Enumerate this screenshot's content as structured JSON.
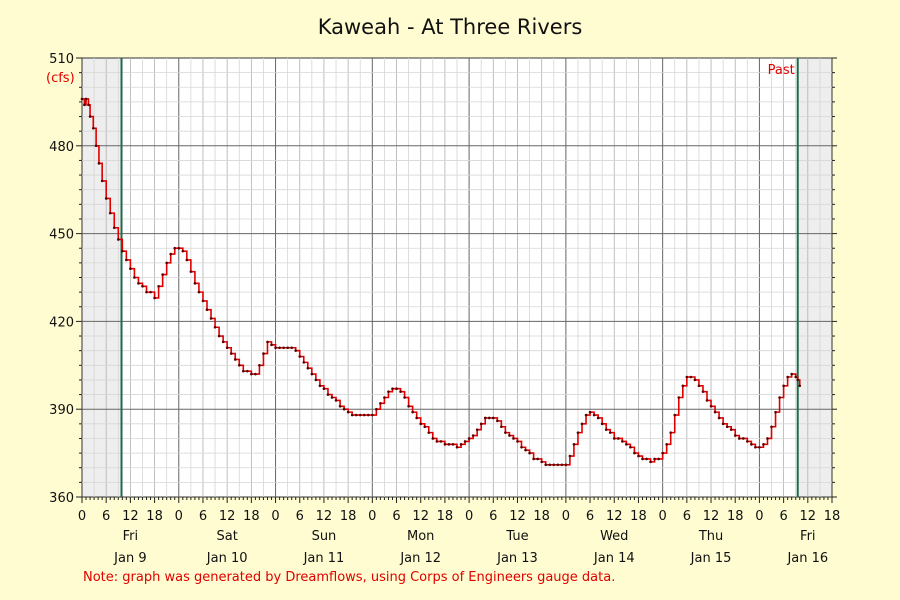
{
  "chart_data": {
    "type": "line",
    "title": "Kaweah - At Three Rivers",
    "unit_label": "(cfs)",
    "ylim": [
      360,
      510
    ],
    "y_ticks": [
      360,
      390,
      420,
      450,
      480,
      510
    ],
    "x_hours_range": [
      0,
      186
    ],
    "hour_tick_labels": [
      "0",
      "6",
      "12",
      "18",
      "0",
      "6",
      "12",
      "18",
      "0",
      "6",
      "12",
      "18",
      "0",
      "6",
      "12",
      "18",
      "0",
      "6",
      "12",
      "18",
      "0",
      "6",
      "12",
      "18",
      "0",
      "6",
      "12",
      "18",
      "0",
      "6",
      "12",
      "18"
    ],
    "days": [
      {
        "weekday": "Fri",
        "date": "Jan 9"
      },
      {
        "weekday": "Sat",
        "date": "Jan 10"
      },
      {
        "weekday": "Sun",
        "date": "Jan 11"
      },
      {
        "weekday": "Mon",
        "date": "Jan 12"
      },
      {
        "weekday": "Tue",
        "date": "Jan 13"
      },
      {
        "weekday": "Wed",
        "date": "Jan 14"
      },
      {
        "weekday": "Thu",
        "date": "Jan 15"
      },
      {
        "weekday": "Fri",
        "date": "Jan 16"
      }
    ],
    "past_label": "Past",
    "grid": true,
    "colors": {
      "series": "#e00000",
      "marker_line": "#1e6a4a",
      "background": "#fefcd0",
      "plot": "#ffffff",
      "shade": "#eeeeee"
    },
    "markers_hours": [
      9.8,
      177.5
    ],
    "series": [
      {
        "points": [
          [
            0,
            496
          ],
          [
            0.6,
            494
          ],
          [
            1,
            496
          ],
          [
            1.6,
            494
          ],
          [
            2,
            490
          ],
          [
            2.8,
            486
          ],
          [
            3.5,
            480
          ],
          [
            4.2,
            474
          ],
          [
            5,
            468
          ],
          [
            6,
            462
          ],
          [
            7,
            457
          ],
          [
            8,
            452
          ],
          [
            9,
            448
          ],
          [
            10,
            444
          ],
          [
            11,
            441
          ],
          [
            12,
            438
          ],
          [
            13,
            435
          ],
          [
            14,
            433
          ],
          [
            15,
            432
          ],
          [
            16,
            430
          ],
          [
            17,
            430
          ],
          [
            18,
            428
          ],
          [
            19,
            432
          ],
          [
            20,
            436
          ],
          [
            21,
            440
          ],
          [
            22,
            443
          ],
          [
            23,
            445
          ],
          [
            24,
            445
          ],
          [
            25,
            444
          ],
          [
            26,
            441
          ],
          [
            27,
            437
          ],
          [
            28,
            433
          ],
          [
            29,
            430
          ],
          [
            30,
            427
          ],
          [
            31,
            424
          ],
          [
            32,
            421
          ],
          [
            33,
            418
          ],
          [
            34,
            415
          ],
          [
            35,
            413
          ],
          [
            36,
            411
          ],
          [
            37,
            409
          ],
          [
            38,
            407
          ],
          [
            39,
            405
          ],
          [
            40,
            403
          ],
          [
            41,
            403
          ],
          [
            42,
            402
          ],
          [
            43,
            402
          ],
          [
            44,
            405
          ],
          [
            45,
            409
          ],
          [
            46,
            413
          ],
          [
            47,
            412
          ],
          [
            48,
            411
          ],
          [
            49,
            411
          ],
          [
            50,
            411
          ],
          [
            51,
            411
          ],
          [
            52,
            411
          ],
          [
            53,
            410
          ],
          [
            54,
            408
          ],
          [
            55,
            406
          ],
          [
            56,
            404
          ],
          [
            57,
            402
          ],
          [
            58,
            400
          ],
          [
            59,
            398
          ],
          [
            60,
            397
          ],
          [
            61,
            395
          ],
          [
            62,
            394
          ],
          [
            63,
            393
          ],
          [
            64,
            391
          ],
          [
            65,
            390
          ],
          [
            66,
            389
          ],
          [
            67,
            388
          ],
          [
            68,
            388
          ],
          [
            69,
            388
          ],
          [
            70,
            388
          ],
          [
            71,
            388
          ],
          [
            72,
            388
          ],
          [
            73,
            390
          ],
          [
            74,
            392
          ],
          [
            75,
            394
          ],
          [
            76,
            396
          ],
          [
            77,
            397
          ],
          [
            78,
            397
          ],
          [
            79,
            396
          ],
          [
            80,
            394
          ],
          [
            81,
            391
          ],
          [
            82,
            389
          ],
          [
            83,
            387
          ],
          [
            84,
            385
          ],
          [
            85,
            384
          ],
          [
            86,
            382
          ],
          [
            87,
            380
          ],
          [
            88,
            379
          ],
          [
            89,
            379
          ],
          [
            90,
            378
          ],
          [
            91,
            378
          ],
          [
            92,
            378
          ],
          [
            93,
            377
          ],
          [
            94,
            378
          ],
          [
            95,
            379
          ],
          [
            96,
            380
          ],
          [
            97,
            381
          ],
          [
            98,
            383
          ],
          [
            99,
            385
          ],
          [
            100,
            387
          ],
          [
            101,
            387
          ],
          [
            102,
            387
          ],
          [
            103,
            386
          ],
          [
            104,
            384
          ],
          [
            105,
            382
          ],
          [
            106,
            381
          ],
          [
            107,
            380
          ],
          [
            108,
            379
          ],
          [
            109,
            377
          ],
          [
            110,
            376
          ],
          [
            111,
            375
          ],
          [
            112,
            373
          ],
          [
            113,
            373
          ],
          [
            114,
            372
          ],
          [
            115,
            371
          ],
          [
            116,
            371
          ],
          [
            117,
            371
          ],
          [
            118,
            371
          ],
          [
            119,
            371
          ],
          [
            120,
            371
          ],
          [
            121,
            374
          ],
          [
            122,
            378
          ],
          [
            123,
            382
          ],
          [
            124,
            385
          ],
          [
            125,
            388
          ],
          [
            126,
            389
          ],
          [
            127,
            388
          ],
          [
            128,
            387
          ],
          [
            129,
            385
          ],
          [
            130,
            383
          ],
          [
            131,
            382
          ],
          [
            132,
            380
          ],
          [
            133,
            380
          ],
          [
            134,
            379
          ],
          [
            135,
            378
          ],
          [
            136,
            377
          ],
          [
            137,
            375
          ],
          [
            138,
            374
          ],
          [
            139,
            373
          ],
          [
            140,
            373
          ],
          [
            141,
            372
          ],
          [
            142,
            373
          ],
          [
            143,
            373
          ],
          [
            144,
            375
          ],
          [
            145,
            378
          ],
          [
            146,
            382
          ],
          [
            147,
            388
          ],
          [
            148,
            394
          ],
          [
            149,
            398
          ],
          [
            150,
            401
          ],
          [
            151,
            401
          ],
          [
            152,
            400
          ],
          [
            153,
            398
          ],
          [
            154,
            396
          ],
          [
            155,
            393
          ],
          [
            156,
            391
          ],
          [
            157,
            389
          ],
          [
            158,
            387
          ],
          [
            159,
            385
          ],
          [
            160,
            384
          ],
          [
            161,
            383
          ],
          [
            162,
            381
          ],
          [
            163,
            380
          ],
          [
            164,
            380
          ],
          [
            165,
            379
          ],
          [
            166,
            378
          ],
          [
            167,
            377
          ],
          [
            168,
            377
          ],
          [
            169,
            378
          ],
          [
            170,
            380
          ],
          [
            171,
            384
          ],
          [
            172,
            389
          ],
          [
            173,
            394
          ],
          [
            174,
            398
          ],
          [
            175,
            401
          ],
          [
            176,
            402
          ],
          [
            177,
            401
          ],
          [
            177.5,
            400
          ],
          [
            178,
            398
          ]
        ]
      }
    ],
    "note": "Note: graph was generated by Dreamflows, using Corps of Engineers gauge data."
  }
}
